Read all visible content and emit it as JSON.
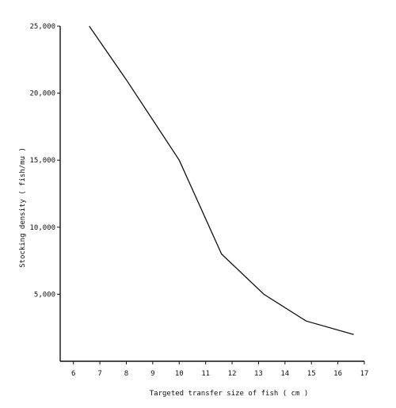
{
  "chart_data": {
    "type": "line",
    "title": "",
    "xlabel": "Targeted transfer size of fish ( cm )",
    "ylabel": "Stocking density ( fish/mu )",
    "x_ticks": [
      "6",
      "7",
      "8",
      "9",
      "10",
      "11",
      "12",
      "13",
      "14",
      "15",
      "16",
      "17"
    ],
    "y_ticks": [
      "5,000",
      "10,000",
      "15,000",
      "20,000",
      "25,000"
    ],
    "xlim": [
      5.5,
      17
    ],
    "ylim": [
      0,
      25000
    ],
    "grid": false,
    "series": [
      {
        "x": [
          6.6,
          8.0,
          9.0,
          10.0,
          11.6,
          13.2,
          14.8,
          16.6
        ],
        "values": [
          25000,
          21000,
          18000,
          15000,
          8000,
          5000,
          3000,
          2000
        ]
      }
    ]
  }
}
